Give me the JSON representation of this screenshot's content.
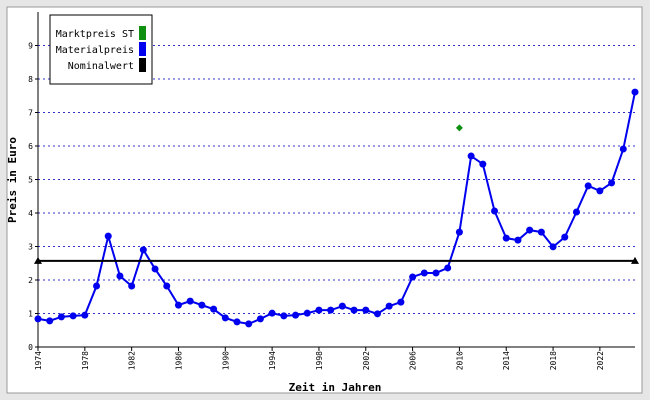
{
  "chart_data": {
    "type": "line",
    "xlabel": "Zeit in Jahren",
    "ylabel": "Preis in Euro",
    "xlim": [
      1974,
      2025
    ],
    "ylim": [
      0,
      10
    ],
    "xticks": [
      1974,
      1978,
      1982,
      1986,
      1990,
      1994,
      1998,
      2002,
      2006,
      2010,
      2014,
      2018,
      2022
    ],
    "yticks": [
      0,
      1,
      2,
      3,
      4,
      5,
      6,
      7,
      8,
      9
    ],
    "grid": true,
    "legend": "upper left",
    "series": [
      {
        "name": "Marktpreis ST",
        "color": "#109010",
        "marker": "diamond",
        "x": [
          2010
        ],
        "values": [
          6.54
        ]
      },
      {
        "name": "Materialpreis",
        "color": "#0000ee",
        "marker": "circle",
        "x": [
          1974,
          1975,
          1976,
          1977,
          1978,
          1979,
          1980,
          1981,
          1982,
          1983,
          1984,
          1985,
          1986,
          1987,
          1988,
          1989,
          1990,
          1991,
          1992,
          1993,
          1994,
          1995,
          1996,
          1997,
          1998,
          1999,
          2000,
          2001,
          2002,
          2003,
          2004,
          2005,
          2006,
          2007,
          2008,
          2009,
          2010,
          2011,
          2012,
          2013,
          2014,
          2015,
          2016,
          2017,
          2018,
          2019,
          2020,
          2021,
          2022,
          2023,
          2024,
          2025
        ],
        "values": [
          0.84,
          0.78,
          0.9,
          0.93,
          0.95,
          1.82,
          3.31,
          2.12,
          1.82,
          2.9,
          2.33,
          1.82,
          1.25,
          1.37,
          1.25,
          1.13,
          0.87,
          0.75,
          0.69,
          0.84,
          1.01,
          0.93,
          0.95,
          1.01,
          1.1,
          1.1,
          1.22,
          1.1,
          1.1,
          0.99,
          1.22,
          1.34,
          2.09,
          2.21,
          2.21,
          2.36,
          3.43,
          5.7,
          5.46,
          4.06,
          3.25,
          3.19,
          3.49,
          3.43,
          2.99,
          3.28,
          4.03,
          4.81,
          4.66,
          4.9,
          5.91,
          7.61
        ]
      },
      {
        "name": "Nominalwert",
        "color": "#000000",
        "marker": "triangle",
        "x": [
          1974,
          2025
        ],
        "values": [
          2.57,
          2.57
        ]
      }
    ]
  }
}
